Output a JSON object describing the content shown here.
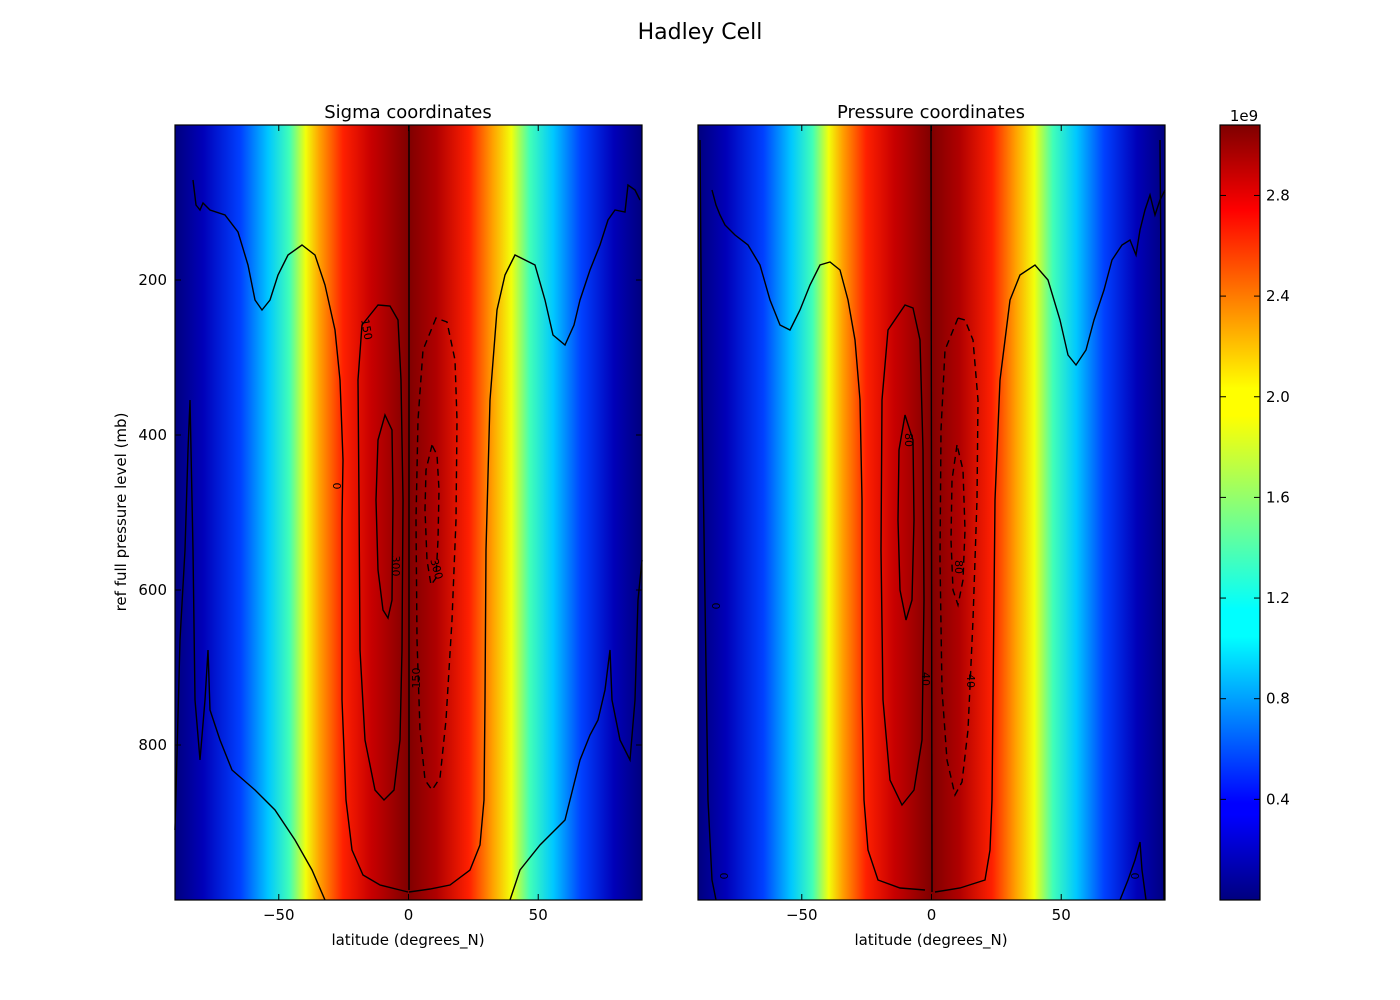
{
  "figure": {
    "title": "Hadley Cell"
  },
  "chart_data": [
    {
      "type": "heatmap",
      "title": "Sigma coordinates",
      "xlabel": "latitude (degrees_N)",
      "ylabel": "ref full pressure level (mb)",
      "xlim": [
        -90,
        90
      ],
      "ylim": [
        1000,
        0
      ],
      "x_ticks": [
        -50,
        0,
        50
      ],
      "y_ticks": [
        200,
        400,
        600,
        800
      ],
      "contour_labels": [
        "150",
        "0",
        "300",
        "300",
        "150"
      ]
    },
    {
      "type": "heatmap",
      "title": "Pressure coordinates",
      "xlabel": "latitude (degrees_N)",
      "xlim": [
        -90,
        90
      ],
      "ylim": [
        1000,
        0
      ],
      "x_ticks": [
        -50,
        0,
        50
      ],
      "contour_labels": [
        "80",
        "0",
        "80",
        "40",
        "40",
        "0",
        "0"
      ]
    }
  ],
  "colorbar": {
    "multiplier": "1e9",
    "ticks": [
      "0.4",
      "0.8",
      "1.2",
      "1.6",
      "2.0",
      "2.4",
      "2.8"
    ],
    "colors": [
      "#00007f",
      "#0000ff",
      "#00ffff",
      "#ffff00",
      "#ff0000",
      "#7f0000"
    ]
  }
}
